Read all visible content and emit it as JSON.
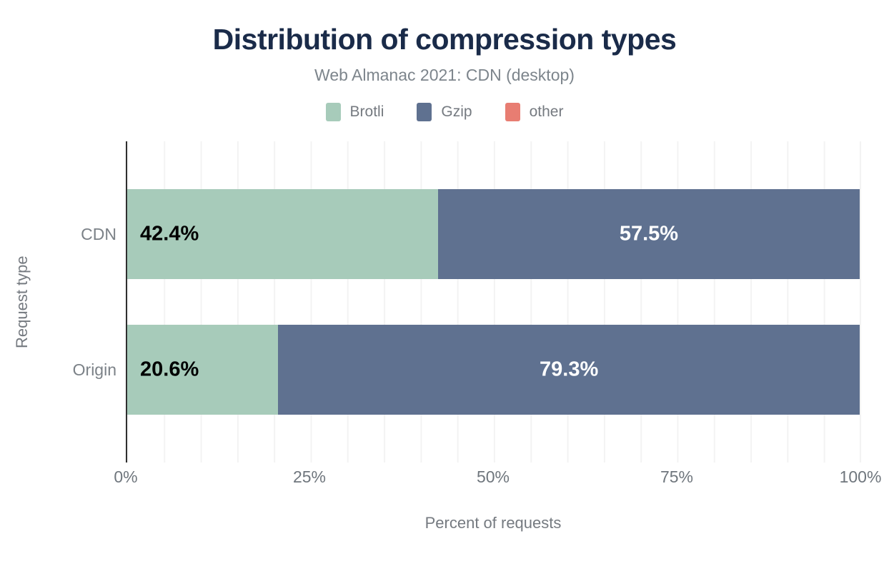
{
  "chart_data": {
    "type": "bar",
    "orientation": "horizontal",
    "stacked": true,
    "title": "Distribution of compression types",
    "subtitle": "Web Almanac 2021: CDN (desktop)",
    "xlabel": "Percent of requests",
    "ylabel": "Request type",
    "categories": [
      "CDN",
      "Origin"
    ],
    "series": [
      {
        "name": "Brotli",
        "color": "#a7cbba",
        "values": [
          42.4,
          20.6
        ],
        "labels": [
          "42.4%",
          "20.6%"
        ]
      },
      {
        "name": "Gzip",
        "color": "#5f7190",
        "values": [
          57.5,
          79.3
        ],
        "labels": [
          "57.5%",
          "79.3%"
        ]
      },
      {
        "name": "other",
        "color": "#e87d72",
        "values": [
          0.1,
          0.1
        ],
        "labels": [
          "",
          ""
        ]
      }
    ],
    "xlim": [
      0,
      100
    ],
    "xticks": [
      "0%",
      "25%",
      "50%",
      "75%",
      "100%"
    ],
    "xtick_values": [
      0,
      25,
      50,
      75,
      100
    ],
    "grid": "vertical minor gridlines every 5%",
    "legend_position": "top",
    "colors": {
      "title": "#1a2b49",
      "subtitle_text": "#7d858c",
      "axis_text": "#757a80",
      "axis_line": "#2f2f2f",
      "gridline": "#f3f3f3",
      "label_on_light": "#000000",
      "label_on_dark": "#ffffff"
    }
  }
}
